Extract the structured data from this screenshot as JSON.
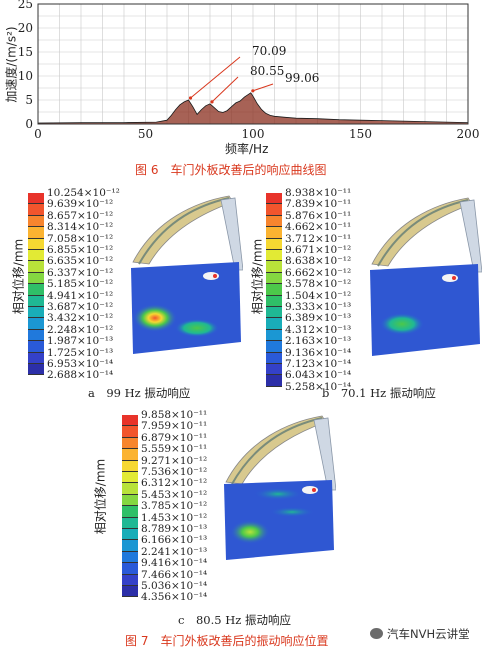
{
  "fig6": {
    "caption": "图 6　车门外板改善后的响应曲线图",
    "chart_data": {
      "type": "line",
      "xlabel": "频率/Hz",
      "ylabel": "加速度/(m/s²)",
      "xlim": [
        0,
        200
      ],
      "ylim": [
        0,
        25
      ],
      "xticks": [
        "0",
        "50",
        "100",
        "150",
        "200"
      ],
      "yticks": [
        "0",
        "5",
        "10",
        "15",
        "20",
        "25"
      ],
      "grid": true,
      "annotations": [
        "70.09",
        "80.55",
        "99.06"
      ],
      "x": [
        0,
        20,
        40,
        55,
        60,
        62,
        64,
        66,
        68,
        70,
        72,
        74,
        76,
        78,
        80,
        82,
        84,
        86,
        88,
        90,
        92,
        94,
        96,
        98,
        99,
        100,
        102,
        104,
        106,
        108,
        110,
        115,
        120,
        130,
        140,
        150,
        160,
        170,
        180,
        190,
        200
      ],
      "y": [
        0.2,
        0.3,
        0.3,
        0.4,
        0.8,
        1.8,
        3.0,
        4.0,
        4.6,
        5.0,
        3.6,
        2.0,
        3.0,
        3.8,
        4.2,
        3.4,
        2.6,
        2.4,
        2.8,
        3.6,
        4.4,
        4.8,
        5.6,
        6.2,
        6.5,
        5.8,
        4.2,
        3.0,
        2.2,
        1.8,
        1.6,
        1.4,
        1.2,
        1.1,
        0.9,
        0.8,
        0.7,
        0.6,
        0.5,
        0.4,
        0.3
      ]
    }
  },
  "fig7": {
    "caption": "图 7　车门外板改善后的振动响应位置",
    "ylabel": "相对位移/mm",
    "panels": [
      {
        "label": "a　99 Hz 振动响应",
        "ticks": [
          "10.254×10⁻¹²",
          "9.639×10⁻¹²",
          "8.657×10⁻¹²",
          "8.314×10⁻¹²",
          "7.058×10⁻¹²",
          "6.855×10⁻¹²",
          "6.635×10⁻¹²",
          "6.337×10⁻¹²",
          "5.185×10⁻¹²",
          "4.941×10⁻¹²",
          "3.687×10⁻¹²",
          "3.432×10⁻¹²",
          "2.248×10⁻¹²",
          "1.987×10⁻¹³",
          "1.725×10⁻¹³",
          "6.953×10⁻¹⁴",
          "2.688×10⁻¹⁴"
        ]
      },
      {
        "label": "b　70.1 Hz 振动响应",
        "ticks": [
          "8.938×10⁻¹¹",
          "7.839×10⁻¹¹",
          "5.876×10⁻¹¹",
          "4.662×10⁻¹¹",
          "3.712×10⁻¹¹",
          "9.671×10⁻¹²",
          "8.638×10⁻¹²",
          "6.662×10⁻¹²",
          "3.578×10⁻¹²",
          "1.504×10⁻¹²",
          "9.333×10⁻¹³",
          "6.389×10⁻¹³",
          "4.312×10⁻¹³",
          "2.163×10⁻¹³",
          "9.136×10⁻¹⁴",
          "7.123×10⁻¹⁴",
          "6.043×10⁻¹⁴",
          "5.258×10⁻¹⁴"
        ]
      },
      {
        "label": "c　80.5 Hz 振动响应",
        "ticks": [
          "9.858×10⁻¹¹",
          "7.959×10⁻¹¹",
          "6.879×10⁻¹¹",
          "5.559×10⁻¹¹",
          "9.271×10⁻¹²",
          "7.536×10⁻¹²",
          "6.312×10⁻¹²",
          "5.453×10⁻¹²",
          "3.785×10⁻¹²",
          "1.453×10⁻¹²",
          "8.789×10⁻¹³",
          "6.166×10⁻¹³",
          "2.241×10⁻¹³",
          "9.416×10⁻¹⁴",
          "7.466×10⁻¹⁴",
          "5.036×10⁻¹⁴",
          "4.356×10⁻¹⁴"
        ]
      }
    ],
    "colorbar_colors": [
      "#e8332a",
      "#f2552d",
      "#f7852e",
      "#fbb331",
      "#f6d832",
      "#e2ea34",
      "#b8e23a",
      "#84d741",
      "#4cc84a",
      "#2fbf68",
      "#1fb894",
      "#19adb8",
      "#1b97d3",
      "#2079dc",
      "#2a5ad8",
      "#3441c8",
      "#2c2fa8"
    ]
  },
  "watermark": "汽车NVH云讲堂"
}
